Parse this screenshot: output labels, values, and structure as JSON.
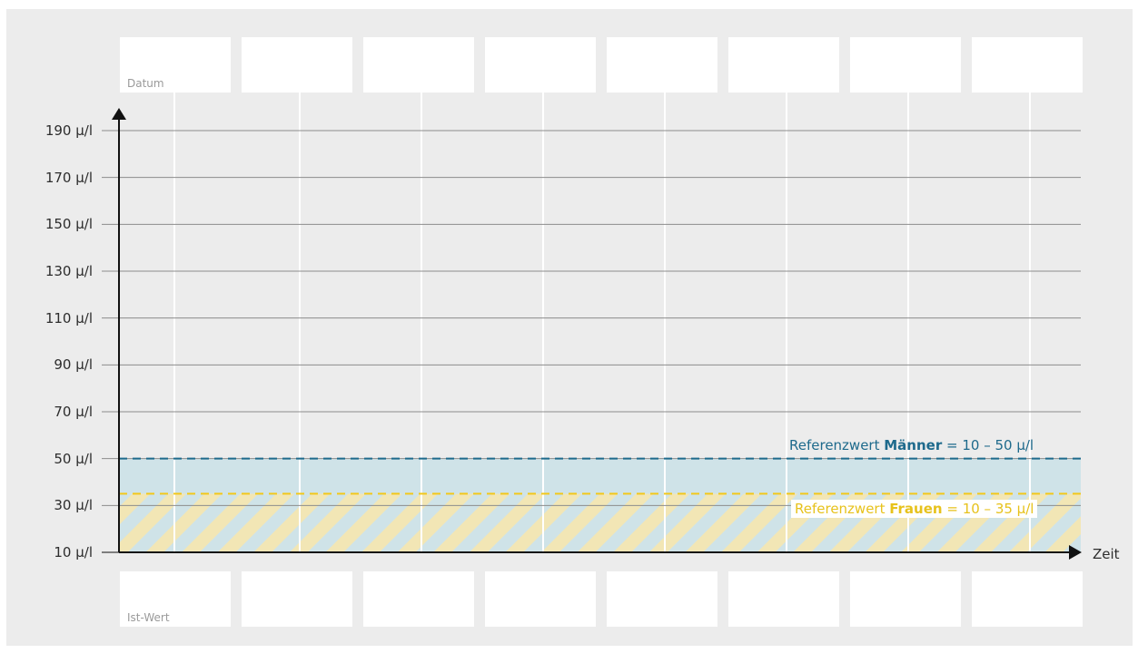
{
  "chart_data": {
    "type": "line",
    "ylabel": "",
    "xlabel": "Zeit",
    "ylim": [
      10,
      190
    ],
    "yticks": [
      "10 µ/l",
      "30 µ/l",
      "50 µ/l",
      "70 µ/l",
      "90 µ/l",
      "110 µ/l",
      "130 µ/l",
      "150 µ/l",
      "170 µ/l",
      "190 µ/l"
    ],
    "ytick_values": [
      10,
      30,
      50,
      70,
      90,
      110,
      130,
      150,
      170,
      190
    ],
    "columns": 8,
    "header_row_label": "Datum",
    "footer_row_label": "Ist-Wert",
    "reference_ranges": [
      {
        "label_prefix": "Referenzwert ",
        "group": "Männer",
        "range_text": " = 10 – 50 µ/l",
        "min": 10,
        "max": 50,
        "color": "#1e6a8c",
        "fill": "#cfe3e8"
      },
      {
        "label_prefix": "Referenzwert ",
        "group": "Frauen",
        "range_text": " = 10 – 35 µ/l",
        "min": 10,
        "max": 35,
        "color": "#f2c81b",
        "fill": "#f2e6b5"
      }
    ],
    "series": [],
    "grid": true
  },
  "colors": {
    "background": "#ececec",
    "gridline": "#8c8c8c",
    "axis": "#111111",
    "column_line": "#ffffff"
  }
}
